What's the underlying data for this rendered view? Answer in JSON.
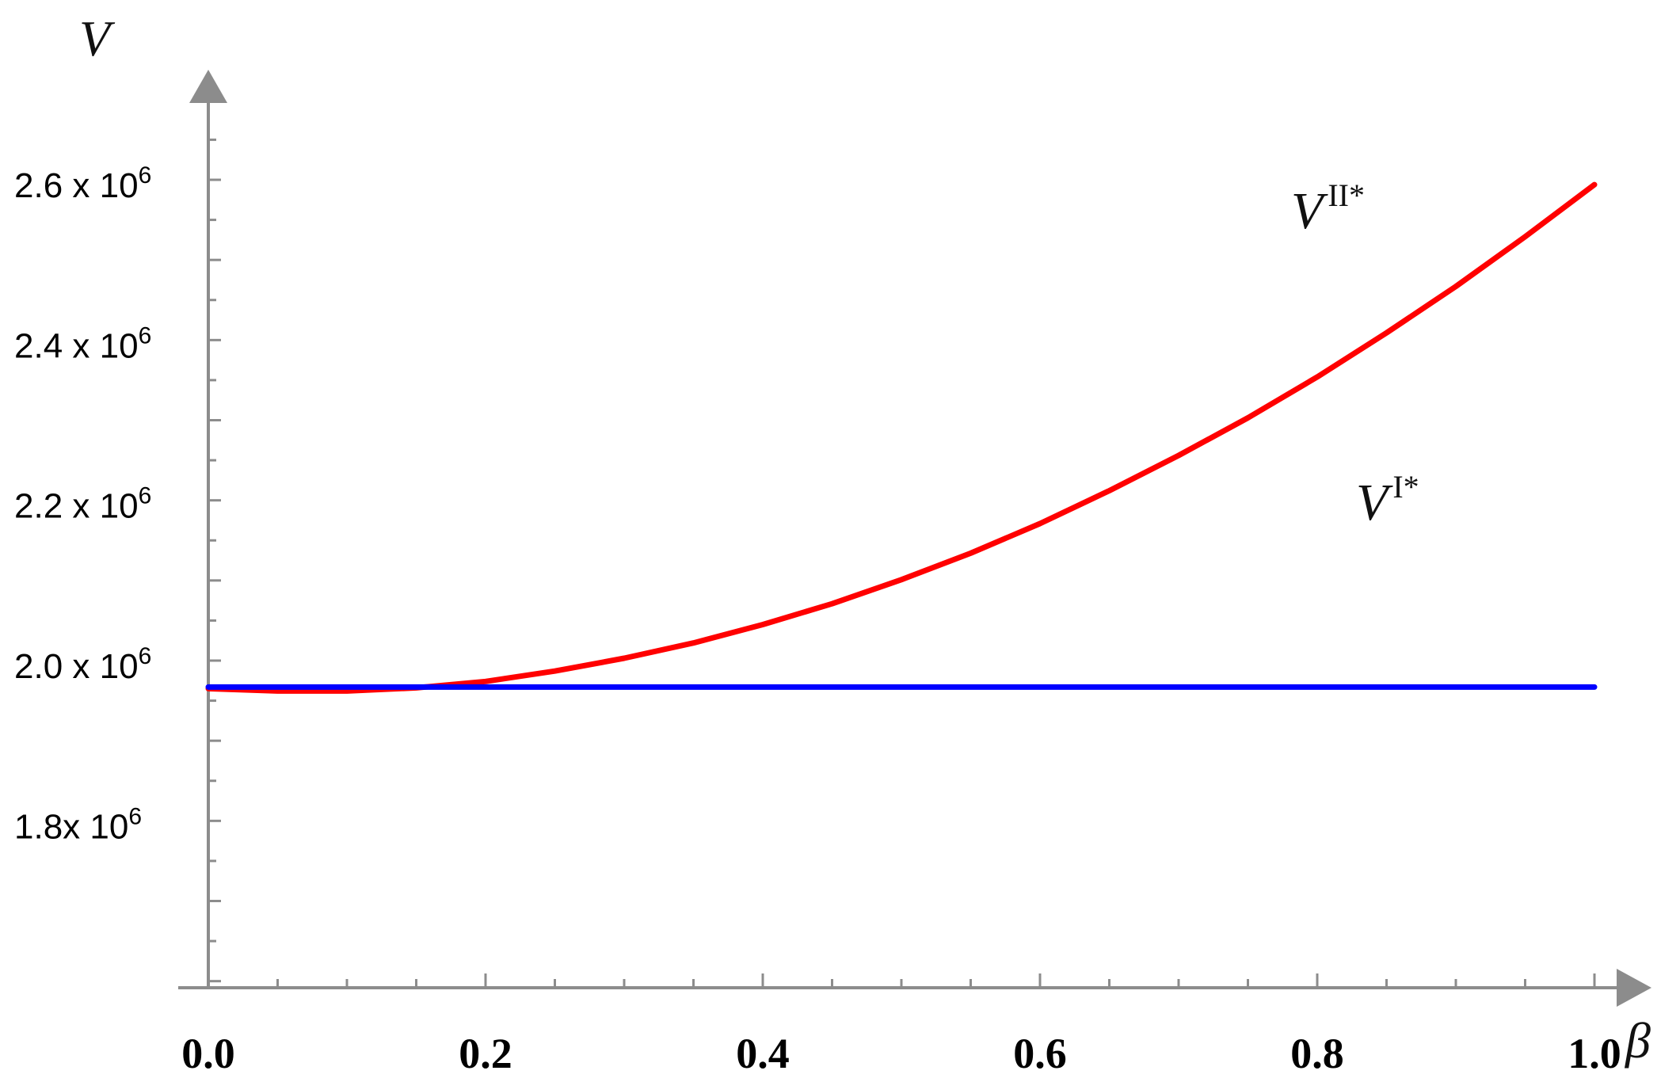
{
  "chart_data": {
    "type": "line",
    "xlabel": "β",
    "ylabel": "V",
    "xlim": [
      0.0,
      1.0
    ],
    "ylim": [
      1.6,
      2.72
    ],
    "x_ticks": [
      "0.0",
      "0.2",
      "0.4",
      "0.6",
      "0.8",
      "1.0"
    ],
    "y_ticks": [
      {
        "mantissa": "2.6 x 10",
        "exponent": "6",
        "value": 2.6
      },
      {
        "mantissa": "2.4 x 10",
        "exponent": "6",
        "value": 2.4
      },
      {
        "mantissa": "2.2 x 10",
        "exponent": "6",
        "value": 2.2
      },
      {
        "mantissa": "2.0 x 10",
        "exponent": "6",
        "value": 2.0
      },
      {
        "mantissa": "1.8x 10",
        "exponent": "6",
        "value": 1.8
      }
    ],
    "y_unit_note": "values in units of 10^6",
    "series": [
      {
        "name": "V II*",
        "label_main": "V",
        "label_sup": "II*",
        "color": "#ff0000",
        "x": [
          0.0,
          0.05,
          0.1,
          0.15,
          0.2,
          0.25,
          0.3,
          0.35,
          0.4,
          0.45,
          0.5,
          0.55,
          0.6,
          0.65,
          0.7,
          0.75,
          0.8,
          0.85,
          0.9,
          0.95,
          1.0
        ],
        "y": [
          1.965,
          1.962,
          1.962,
          1.966,
          1.974,
          1.987,
          2.003,
          2.022,
          2.045,
          2.071,
          2.101,
          2.134,
          2.171,
          2.212,
          2.256,
          2.303,
          2.354,
          2.409,
          2.467,
          2.529,
          2.594
        ]
      },
      {
        "name": "V I*",
        "label_main": "V",
        "label_sup": "I*",
        "color": "#0000ff",
        "x": [
          0.0,
          1.0
        ],
        "y": [
          1.967,
          1.967
        ]
      }
    ],
    "grid": false,
    "legend": "inline labels"
  }
}
